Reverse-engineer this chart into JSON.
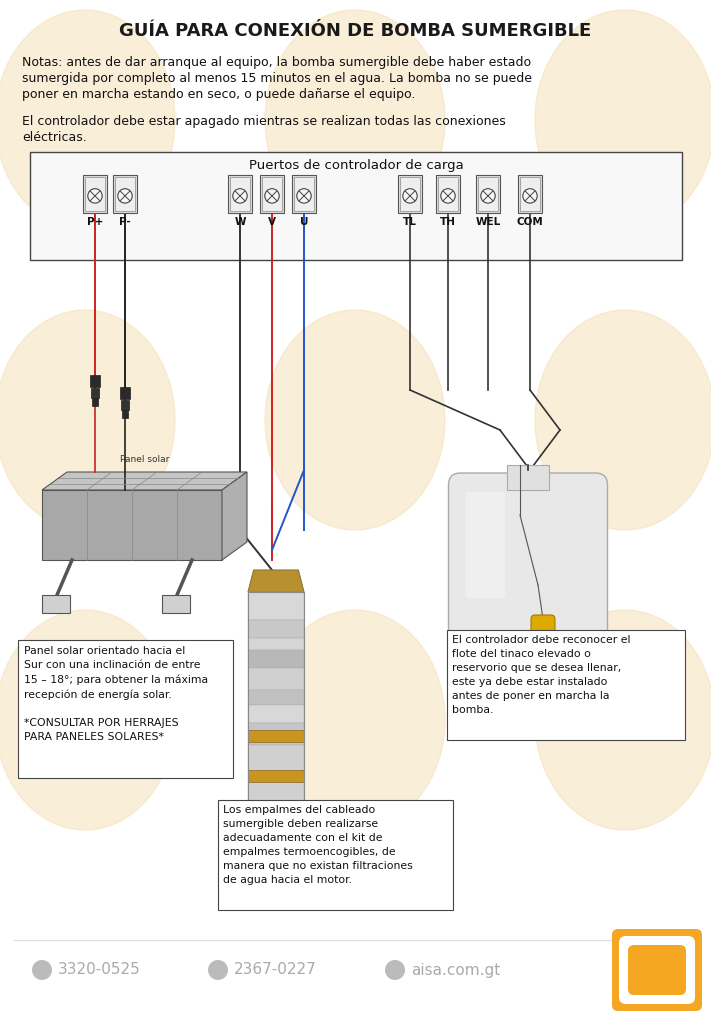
{
  "title": "GUÍA PARA CONEXIÓN DE BOMBA SUMERGIBLE",
  "bg_color": "#ffffff",
  "watermark_color": "#f5e0b8",
  "text_color": "#111111",
  "gray_color": "#999999",
  "orange_color": "#f5a623",
  "note1_line1": "Notas: antes de dar arranque al equipo, la bomba sumergible debe haber estado",
  "note1_line2": "sumergida por completo al menos 15 minutos en el agua. La bomba no se puede",
  "note1_line3": "poner en marcha estando en seco, o puede dañarse el equipo.",
  "note2_line1": "El controlador debe estar apagado mientras se realizan todas las conexiones",
  "note2_line2": "eléctricas.",
  "controller_label": "Puertos de controlador de carga",
  "port_labels": [
    "P+",
    "P-",
    "W",
    "V",
    "U",
    "TL",
    "TH",
    "WEL",
    "COM"
  ],
  "panel_note": "Panel solar orientado hacia el\nSur con una inclinación de entre\n15 – 18°; para obtener la máxima\nrecepción de energía solar.\n\n*CONSULTAR POR HERRAJES\nPARA PANELES SOLARES*",
  "pump_note": "Los empalmes del cableado\nsumergible deben realizarse\nadecuadamente con el kit de\nempalmes termoencogibles, de\nmanera que no existan filtraciones\nde agua hacia el motor.",
  "tank_note": "El controlador debe reconocer el\nflote del tinaco elevado o\nreservorio que se desea llenar,\neste ya debe estar instalado\nantes de poner en marcha la\nbomba.",
  "footer_phone1": "3320-0525",
  "footer_phone2": "2367-0227",
  "footer_web": "aisa.com.gt",
  "panel_solar_label": "Panel solar"
}
